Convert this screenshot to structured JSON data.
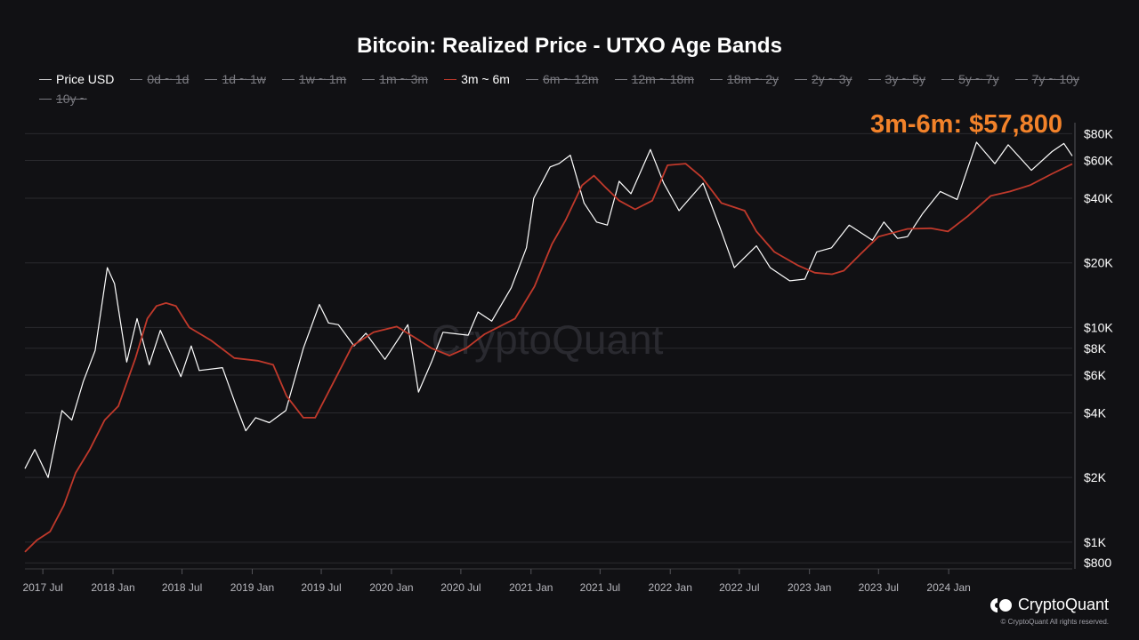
{
  "chart_data": {
    "type": "line",
    "title": "Bitcoin: Realized Price - UTXO Age Bands",
    "y_scale": "log",
    "ylim": [
      750,
      90000
    ],
    "xlim": [
      "2017-05-15",
      "2024-11-20"
    ],
    "grid": true,
    "legend_position": "top",
    "y_ticks": [
      {
        "value": 80000,
        "label": "$80K"
      },
      {
        "value": 60000,
        "label": "$60K"
      },
      {
        "value": 40000,
        "label": "$40K"
      },
      {
        "value": 20000,
        "label": "$20K"
      },
      {
        "value": 10000,
        "label": "$10K"
      },
      {
        "value": 8000,
        "label": "$8K"
      },
      {
        "value": 6000,
        "label": "$6K"
      },
      {
        "value": 4000,
        "label": "$4K"
      },
      {
        "value": 2000,
        "label": "$2K"
      },
      {
        "value": 1000,
        "label": "$1K"
      },
      {
        "value": 800,
        "label": "$800"
      }
    ],
    "x_ticks": [
      {
        "date": "2017-07-01",
        "label": "2017 Jul"
      },
      {
        "date": "2018-01-01",
        "label": "2018 Jan"
      },
      {
        "date": "2018-07-01",
        "label": "2018 Jul"
      },
      {
        "date": "2019-01-01",
        "label": "2019 Jan"
      },
      {
        "date": "2019-07-01",
        "label": "2019 Jul"
      },
      {
        "date": "2020-01-01",
        "label": "2020 Jan"
      },
      {
        "date": "2020-07-01",
        "label": "2020 Jul"
      },
      {
        "date": "2021-01-01",
        "label": "2021 Jan"
      },
      {
        "date": "2021-07-01",
        "label": "2021 Jul"
      },
      {
        "date": "2022-01-01",
        "label": "2022 Jan"
      },
      {
        "date": "2022-07-01",
        "label": "2022 Jul"
      },
      {
        "date": "2023-01-01",
        "label": "2023 Jan"
      },
      {
        "date": "2023-07-01",
        "label": "2023 Jul"
      },
      {
        "date": "2024-01-01",
        "label": "2024 Jan"
      }
    ],
    "legend": [
      {
        "label": "Price USD",
        "enabled": true,
        "color": "#ffffff"
      },
      {
        "label": "0d ~ 1d",
        "enabled": false
      },
      {
        "label": "1d ~ 1w",
        "enabled": false
      },
      {
        "label": "1w ~ 1m",
        "enabled": false
      },
      {
        "label": "1m ~ 3m",
        "enabled": false
      },
      {
        "label": "3m ~ 6m",
        "enabled": true,
        "color": "#c0392b"
      },
      {
        "label": "6m ~ 12m",
        "enabled": false
      },
      {
        "label": "12m ~ 18m",
        "enabled": false
      },
      {
        "label": "18m ~ 2y",
        "enabled": false
      },
      {
        "label": "2y ~ 3y",
        "enabled": false
      },
      {
        "label": "3y ~ 5y",
        "enabled": false
      },
      {
        "label": "5y ~ 7y",
        "enabled": false
      },
      {
        "label": "7y ~ 10y",
        "enabled": false
      },
      {
        "label": "10y ~",
        "enabled": false
      }
    ],
    "series": [
      {
        "name": "Price USD",
        "color": "#ffffff",
        "points": [
          [
            "2017-05-15",
            2200
          ],
          [
            "2017-06-10",
            2700
          ],
          [
            "2017-07-15",
            2000
          ],
          [
            "2017-08-20",
            4100
          ],
          [
            "2017-09-15",
            3700
          ],
          [
            "2017-10-15",
            5600
          ],
          [
            "2017-11-15",
            7800
          ],
          [
            "2017-12-17",
            19000
          ],
          [
            "2018-01-05",
            16000
          ],
          [
            "2018-02-06",
            6900
          ],
          [
            "2018-03-05",
            11000
          ],
          [
            "2018-04-06",
            6700
          ],
          [
            "2018-05-05",
            9700
          ],
          [
            "2018-06-28",
            5900
          ],
          [
            "2018-07-25",
            8200
          ],
          [
            "2018-08-15",
            6300
          ],
          [
            "2018-10-15",
            6500
          ],
          [
            "2018-11-20",
            4300
          ],
          [
            "2018-12-15",
            3300
          ],
          [
            "2019-01-10",
            3800
          ],
          [
            "2019-02-15",
            3600
          ],
          [
            "2019-03-30",
            4100
          ],
          [
            "2019-05-15",
            8000
          ],
          [
            "2019-06-26",
            12800
          ],
          [
            "2019-07-20",
            10500
          ],
          [
            "2019-08-15",
            10300
          ],
          [
            "2019-09-25",
            8200
          ],
          [
            "2019-10-26",
            9400
          ],
          [
            "2019-12-15",
            7100
          ],
          [
            "2020-02-13",
            10300
          ],
          [
            "2020-03-12",
            5000
          ],
          [
            "2020-04-15",
            6900
          ],
          [
            "2020-05-15",
            9500
          ],
          [
            "2020-07-20",
            9200
          ],
          [
            "2020-08-15",
            11800
          ],
          [
            "2020-09-20",
            10700
          ],
          [
            "2020-11-10",
            15300
          ],
          [
            "2020-12-20",
            23500
          ],
          [
            "2021-01-08",
            40000
          ],
          [
            "2021-02-20",
            56000
          ],
          [
            "2021-03-15",
            58000
          ],
          [
            "2021-04-14",
            63500
          ],
          [
            "2021-05-20",
            38000
          ],
          [
            "2021-06-22",
            31000
          ],
          [
            "2021-07-20",
            30000
          ],
          [
            "2021-08-20",
            48000
          ],
          [
            "2021-09-20",
            42000
          ],
          [
            "2021-11-10",
            67500
          ],
          [
            "2021-12-15",
            47000
          ],
          [
            "2022-01-24",
            35000
          ],
          [
            "2022-03-28",
            47000
          ],
          [
            "2022-05-12",
            29000
          ],
          [
            "2022-06-18",
            19000
          ],
          [
            "2022-08-15",
            24000
          ],
          [
            "2022-09-20",
            19000
          ],
          [
            "2022-11-10",
            16500
          ],
          [
            "2022-12-20",
            16800
          ],
          [
            "2023-01-20",
            22500
          ],
          [
            "2023-02-28",
            23500
          ],
          [
            "2023-04-15",
            30000
          ],
          [
            "2023-06-15",
            25500
          ],
          [
            "2023-07-15",
            31000
          ],
          [
            "2023-08-20",
            26000
          ],
          [
            "2023-09-15",
            26500
          ],
          [
            "2023-10-25",
            34000
          ],
          [
            "2023-12-10",
            43000
          ],
          [
            "2024-01-23",
            39500
          ],
          [
            "2024-03-14",
            73000
          ],
          [
            "2024-05-01",
            58000
          ],
          [
            "2024-06-05",
            71000
          ],
          [
            "2024-08-05",
            54000
          ],
          [
            "2024-09-28",
            66000
          ],
          [
            "2024-10-29",
            72000
          ],
          [
            "2024-11-20",
            63000
          ]
        ]
      },
      {
        "name": "3m ~ 6m",
        "color": "#c0392b",
        "points": [
          [
            "2017-05-15",
            900
          ],
          [
            "2017-06-15",
            1020
          ],
          [
            "2017-07-20",
            1120
          ],
          [
            "2017-08-25",
            1480
          ],
          [
            "2017-09-25",
            2100
          ],
          [
            "2017-11-01",
            2700
          ],
          [
            "2017-12-10",
            3700
          ],
          [
            "2018-01-15",
            4300
          ],
          [
            "2018-03-01",
            7200
          ],
          [
            "2018-04-01",
            11000
          ],
          [
            "2018-04-25",
            12600
          ],
          [
            "2018-05-20",
            13000
          ],
          [
            "2018-06-15",
            12600
          ],
          [
            "2018-07-20",
            10000
          ],
          [
            "2018-09-15",
            8700
          ],
          [
            "2018-11-15",
            7200
          ],
          [
            "2019-01-15",
            7000
          ],
          [
            "2019-02-25",
            6700
          ],
          [
            "2019-04-01",
            4800
          ],
          [
            "2019-05-15",
            3800
          ],
          [
            "2019-06-15",
            3800
          ],
          [
            "2019-08-01",
            5500
          ],
          [
            "2019-09-20",
            8200
          ],
          [
            "2019-11-15",
            9500
          ],
          [
            "2020-01-15",
            10100
          ],
          [
            "2020-03-01",
            9000
          ],
          [
            "2020-04-15",
            8000
          ],
          [
            "2020-06-01",
            7400
          ],
          [
            "2020-07-15",
            8000
          ],
          [
            "2020-09-01",
            9300
          ],
          [
            "2020-10-15",
            10200
          ],
          [
            "2020-11-20",
            11000
          ],
          [
            "2021-01-10",
            15500
          ],
          [
            "2021-02-25",
            24500
          ],
          [
            "2021-04-01",
            31500
          ],
          [
            "2021-05-15",
            46000
          ],
          [
            "2021-06-15",
            51000
          ],
          [
            "2021-07-15",
            45000
          ],
          [
            "2021-08-20",
            39000
          ],
          [
            "2021-10-01",
            35500
          ],
          [
            "2021-11-15",
            39000
          ],
          [
            "2021-12-25",
            57000
          ],
          [
            "2022-02-10",
            58000
          ],
          [
            "2022-03-25",
            50000
          ],
          [
            "2022-05-15",
            38000
          ],
          [
            "2022-07-15",
            35000
          ],
          [
            "2022-08-15",
            28000
          ],
          [
            "2022-10-01",
            22500
          ],
          [
            "2022-12-01",
            19500
          ],
          [
            "2023-01-15",
            18000
          ],
          [
            "2023-03-01",
            17700
          ],
          [
            "2023-04-01",
            18400
          ],
          [
            "2023-05-15",
            22000
          ],
          [
            "2023-07-01",
            26500
          ],
          [
            "2023-09-15",
            28800
          ],
          [
            "2023-11-15",
            29000
          ],
          [
            "2023-12-30",
            28000
          ],
          [
            "2024-02-20",
            33000
          ],
          [
            "2024-04-20",
            41000
          ],
          [
            "2024-06-10",
            43000
          ],
          [
            "2024-08-01",
            46000
          ],
          [
            "2024-09-28",
            52000
          ],
          [
            "2024-11-20",
            57800
          ]
        ]
      }
    ],
    "annotation": "3m-6m: $57,800"
  },
  "brand": {
    "name": "CryptoQuant",
    "copyright": "© CryptoQuant All rights reserved.",
    "watermark": "CryptoQuant"
  }
}
